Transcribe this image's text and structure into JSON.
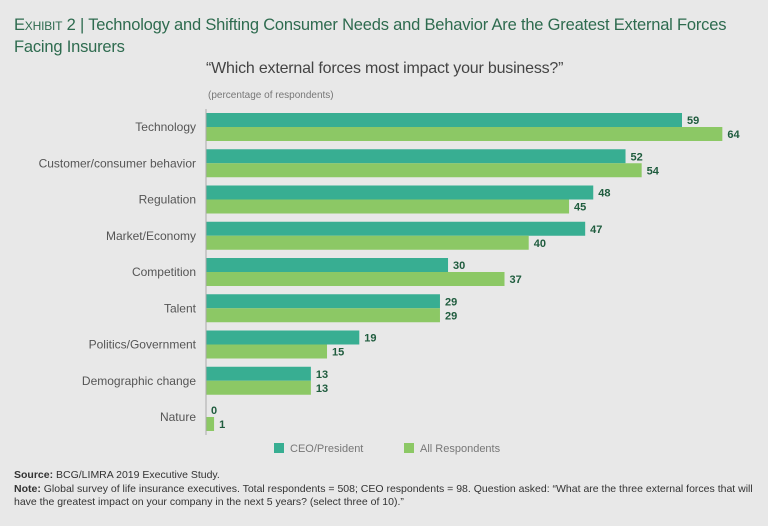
{
  "header": {
    "exhibit": "Exhibit 2",
    "separator": " | ",
    "title": "Technology and Shifting Consumer Needs and Behavior Are the Greatest External Forces Facing Insurers",
    "question": "“Which external forces most impact your business?”",
    "units": "(percentage of respondents)"
  },
  "footer": {
    "source_label": "Source:",
    "source_text": " BCG/LIMRA 2019 Executive Study.",
    "note_label": "Note:",
    "note_text": " Global survey of life insurance executives. Total respondents = 508; CEO respondents = 98. Question asked: “What are the three external forces that will have the greatest impact on your company in the next 5 years? (select three of 10).”"
  },
  "chart_data": {
    "type": "bar",
    "orientation": "horizontal",
    "title": "Which external forces most impact your business?",
    "xlabel": "percentage of respondents",
    "ylabel": "",
    "xlim": [
      0,
      70
    ],
    "grid": false,
    "legend_position": "bottom",
    "categories": [
      "Technology",
      "Customer/consumer behavior",
      "Regulation",
      "Market/Economy",
      "Competition",
      "Talent",
      "Politics/Government",
      "Demographic change",
      "Nature"
    ],
    "series": [
      {
        "name": "CEO/President",
        "color": "#38ae92",
        "values": [
          59,
          52,
          48,
          47,
          30,
          29,
          19,
          13,
          0
        ]
      },
      {
        "name": "All Respondents",
        "color": "#8cc865",
        "values": [
          64,
          54,
          45,
          40,
          37,
          29,
          15,
          13,
          1
        ]
      }
    ]
  }
}
